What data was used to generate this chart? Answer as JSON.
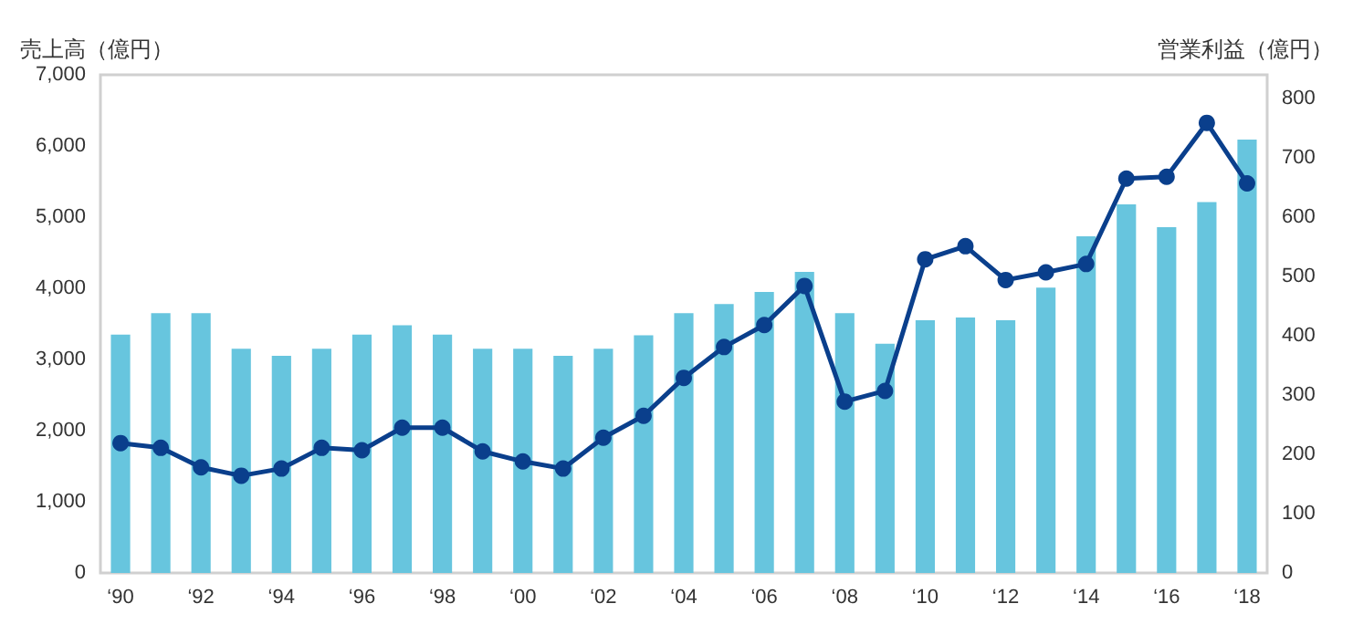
{
  "chart_data": {
    "type": "bar",
    "ylabel": "売上高（億円）",
    "y2label": "営業利益（億円）",
    "categories": [
      "‘90",
      null,
      "‘92",
      null,
      "‘94",
      null,
      "‘96",
      null,
      "‘98",
      null,
      "‘00",
      null,
      "‘02",
      null,
      "‘04",
      null,
      "‘06",
      null,
      "‘08",
      null,
      "‘10",
      null,
      "‘12",
      null,
      "‘14",
      null,
      "‘16",
      null,
      "‘18"
    ],
    "series": [
      {
        "color": "#67c5de",
        "values": [
          3350,
          3650,
          3650,
          3150,
          3050,
          3150,
          3350,
          3480,
          3350,
          3150,
          3150,
          3050,
          3150,
          3340,
          3650,
          3780,
          3950,
          4230,
          3650,
          3220,
          3550,
          3590,
          3550,
          4010,
          4730,
          5180,
          4860,
          5210,
          6090
        ]
      },
      {
        "type": "line",
        "axis": "y2",
        "color": "#0a3f8c",
        "values": [
          219,
          211,
          178,
          164,
          176,
          211,
          207,
          245,
          245,
          205,
          188,
          176,
          228,
          265,
          329,
          381,
          418,
          484,
          289,
          307,
          529,
          551,
          494,
          507,
          521,
          665,
          668,
          759,
          657
        ]
      }
    ],
    "ylim": [
      0,
      7000
    ],
    "yticks": [
      0,
      {
        "value": 1000,
        "label": "1,000"
      },
      {
        "value": 2000,
        "label": "2,000"
      },
      {
        "value": 3000,
        "label": "3,000"
      },
      {
        "value": 4000,
        "label": "4,000"
      },
      {
        "value": 5000,
        "label": "5,000"
      },
      {
        "value": 6000,
        "label": "6,000"
      },
      {
        "value": 7000,
        "label": "7,000"
      }
    ],
    "y2lim": [
      0,
      840
    ],
    "y2ticks": [
      0,
      100,
      200,
      300,
      400,
      500,
      600,
      700,
      800
    ],
    "marker": "circle",
    "grid": false
  }
}
